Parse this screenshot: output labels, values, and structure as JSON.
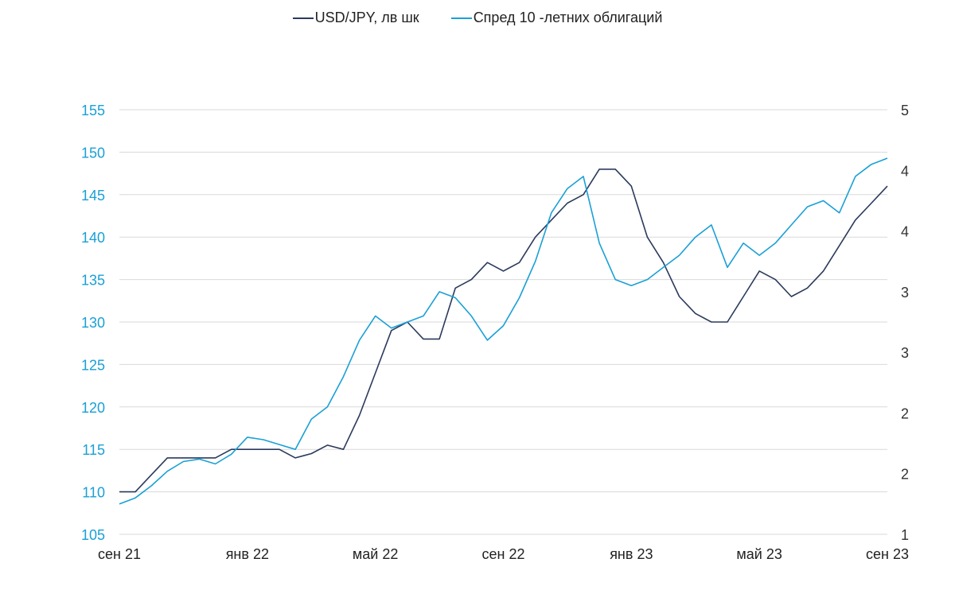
{
  "chart_data": {
    "type": "line",
    "legend_position": "top-center",
    "grid": true,
    "colors": {
      "usdjpy": "#2b3a5c",
      "spread": "#1aa0d6",
      "grid": "#d9d9d9",
      "left_axis_text": "#1aa0d6",
      "right_axis_text": "#333333"
    },
    "x_ticks": [
      "сен 21",
      "янв 22",
      "май 22",
      "сен 22",
      "янв 23",
      "май 23",
      "сен 23"
    ],
    "left_axis": {
      "ticks": [
        "155",
        "150",
        "145",
        "140",
        "135",
        "130",
        "125",
        "120",
        "115",
        "110",
        "105"
      ],
      "ylim": [
        105,
        155
      ]
    },
    "right_axis": {
      "ticks": [
        "5",
        "4",
        "4",
        "3",
        "3",
        "2",
        "2",
        "1"
      ],
      "ylim": [
        1.0,
        4.5
      ]
    },
    "series": [
      {
        "name": "USD/JPY, лв шк",
        "axis": "left",
        "x_months": [
          0,
          0.5,
          1,
          1.5,
          2,
          2.5,
          3,
          3.5,
          4,
          4.5,
          5,
          5.5,
          6,
          6.5,
          7,
          7.5,
          8,
          8.5,
          9,
          9.5,
          10,
          10.5,
          11,
          11.5,
          12,
          12.5,
          13,
          13.5,
          14,
          14.5,
          15,
          15.5,
          16,
          16.5,
          17,
          17.5,
          18,
          18.5,
          19,
          19.5,
          20,
          20.5,
          21,
          21.5,
          22,
          22.5,
          23,
          23.5,
          24
        ],
        "values": [
          110,
          110,
          112,
          114,
          114,
          114,
          114,
          115,
          115,
          115,
          115,
          114,
          114.5,
          115.5,
          115,
          119,
          124,
          129,
          130,
          128,
          128,
          134,
          135,
          137,
          136,
          137,
          140,
          142,
          144,
          145,
          148,
          148,
          146,
          140,
          137,
          133,
          131,
          130,
          130,
          133,
          136,
          135,
          133,
          134,
          136,
          139,
          142,
          144,
          146
        ]
      },
      {
        "name": "Спред 10 -летних облигаций",
        "axis": "right",
        "x_months": [
          0,
          0.5,
          1,
          1.5,
          2,
          2.5,
          3,
          3.5,
          4,
          4.5,
          5,
          5.5,
          6,
          6.5,
          7,
          7.5,
          8,
          8.5,
          9,
          9.5,
          10,
          10.5,
          11,
          11.5,
          12,
          12.5,
          13,
          13.5,
          14,
          14.5,
          15,
          15.5,
          16,
          16.5,
          17,
          17.5,
          18,
          18.5,
          19,
          19.5,
          20,
          20.5,
          21,
          21.5,
          22,
          22.5,
          23,
          23.5,
          24
        ],
        "values": [
          1.25,
          1.3,
          1.4,
          1.52,
          1.6,
          1.62,
          1.58,
          1.66,
          1.8,
          1.78,
          1.74,
          1.7,
          1.95,
          2.05,
          2.3,
          2.6,
          2.8,
          2.7,
          2.75,
          2.8,
          3.0,
          2.95,
          2.8,
          2.6,
          2.72,
          2.95,
          3.25,
          3.65,
          3.85,
          3.95,
          3.4,
          3.1,
          3.05,
          3.1,
          3.2,
          3.3,
          3.45,
          3.55,
          3.2,
          3.4,
          3.3,
          3.4,
          3.55,
          3.7,
          3.75,
          3.65,
          3.95,
          4.05,
          4.1
        ]
      }
    ]
  }
}
